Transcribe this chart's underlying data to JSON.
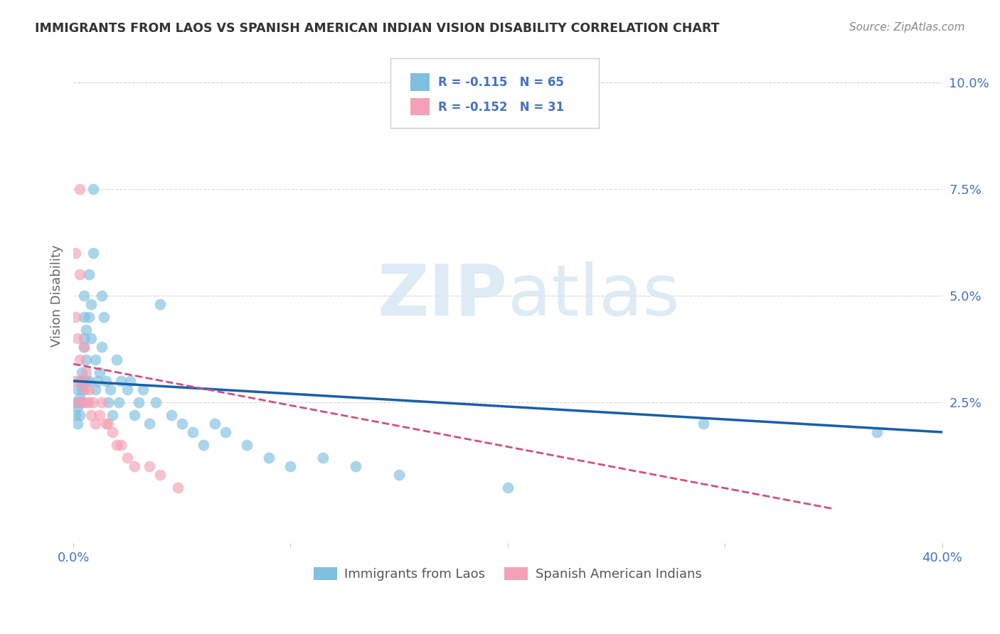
{
  "title": "IMMIGRANTS FROM LAOS VS SPANISH AMERICAN INDIAN VISION DISABILITY CORRELATION CHART",
  "source": "Source: ZipAtlas.com",
  "ylabel": "Vision Disability",
  "ytick_labels": [
    "2.5%",
    "5.0%",
    "7.5%",
    "10.0%"
  ],
  "ytick_values": [
    0.025,
    0.05,
    0.075,
    0.1
  ],
  "xlim": [
    0.0,
    0.4
  ],
  "ylim": [
    -0.008,
    0.108
  ],
  "legend1_R": "-0.115",
  "legend1_N": "65",
  "legend2_R": "-0.152",
  "legend2_N": "31",
  "legend1_label": "Immigrants from Laos",
  "legend2_label": "Spanish American Indians",
  "blue_color": "#7fbfdf",
  "pink_color": "#f4a0b5",
  "trend_blue": "#1a5fa8",
  "trend_pink": "#d05080",
  "blue_x": [
    0.001,
    0.001,
    0.002,
    0.002,
    0.002,
    0.003,
    0.003,
    0.003,
    0.003,
    0.004,
    0.004,
    0.004,
    0.004,
    0.005,
    0.005,
    0.005,
    0.005,
    0.005,
    0.006,
    0.006,
    0.006,
    0.007,
    0.007,
    0.007,
    0.008,
    0.008,
    0.009,
    0.009,
    0.01,
    0.01,
    0.011,
    0.012,
    0.013,
    0.013,
    0.014,
    0.015,
    0.016,
    0.017,
    0.018,
    0.02,
    0.021,
    0.022,
    0.025,
    0.026,
    0.028,
    0.03,
    0.032,
    0.035,
    0.038,
    0.04,
    0.045,
    0.05,
    0.055,
    0.06,
    0.065,
    0.07,
    0.08,
    0.09,
    0.1,
    0.115,
    0.13,
    0.15,
    0.2,
    0.29,
    0.37
  ],
  "blue_y": [
    0.022,
    0.025,
    0.02,
    0.024,
    0.028,
    0.026,
    0.022,
    0.025,
    0.03,
    0.028,
    0.025,
    0.03,
    0.032,
    0.028,
    0.038,
    0.04,
    0.045,
    0.05,
    0.03,
    0.035,
    0.042,
    0.03,
    0.045,
    0.055,
    0.04,
    0.048,
    0.06,
    0.075,
    0.028,
    0.035,
    0.03,
    0.032,
    0.05,
    0.038,
    0.045,
    0.03,
    0.025,
    0.028,
    0.022,
    0.035,
    0.025,
    0.03,
    0.028,
    0.03,
    0.022,
    0.025,
    0.028,
    0.02,
    0.025,
    0.048,
    0.022,
    0.02,
    0.018,
    0.015,
    0.02,
    0.018,
    0.015,
    0.012,
    0.01,
    0.012,
    0.01,
    0.008,
    0.005,
    0.02,
    0.018
  ],
  "pink_x": [
    0.001,
    0.001,
    0.001,
    0.002,
    0.002,
    0.003,
    0.003,
    0.003,
    0.004,
    0.004,
    0.005,
    0.005,
    0.006,
    0.006,
    0.007,
    0.007,
    0.008,
    0.009,
    0.01,
    0.012,
    0.013,
    0.015,
    0.016,
    0.018,
    0.02,
    0.022,
    0.025,
    0.028,
    0.035,
    0.04,
    0.048
  ],
  "pink_y": [
    0.03,
    0.045,
    0.06,
    0.025,
    0.04,
    0.075,
    0.035,
    0.055,
    0.025,
    0.03,
    0.028,
    0.038,
    0.025,
    0.032,
    0.028,
    0.025,
    0.022,
    0.025,
    0.02,
    0.022,
    0.025,
    0.02,
    0.02,
    0.018,
    0.015,
    0.015,
    0.012,
    0.01,
    0.01,
    0.008,
    0.005
  ],
  "watermark_zip": "ZIP",
  "watermark_atlas": "atlas",
  "background_color": "#ffffff",
  "grid_color": "#cccccc",
  "blue_trend_start_x": 0.0,
  "blue_trend_end_x": 0.4,
  "blue_trend_start_y": 0.03,
  "blue_trend_end_y": 0.018,
  "pink_trend_start_x": 0.0,
  "pink_trend_end_x": 0.35,
  "pink_trend_start_y": 0.034,
  "pink_trend_end_y": 0.0
}
